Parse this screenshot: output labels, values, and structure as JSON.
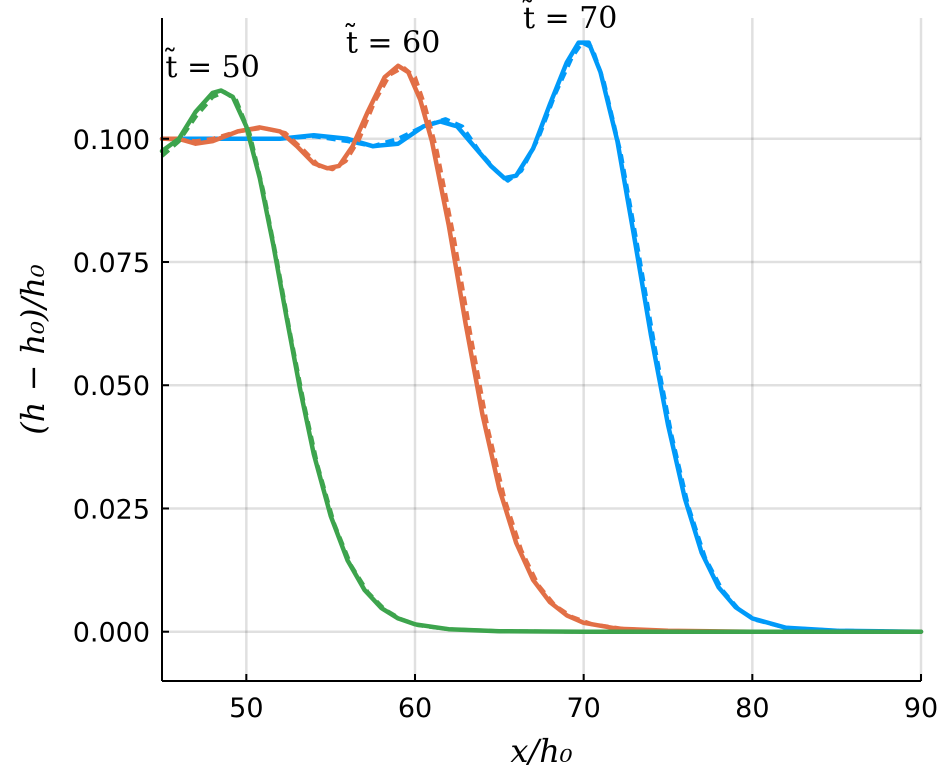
{
  "chart_data": {
    "type": "line",
    "xlabel": "x/h₀",
    "ylabel": "(h − h₀)/h₀",
    "xlim": [
      45,
      90
    ],
    "ylim": [
      -0.01,
      0.1245
    ],
    "grid": true,
    "legend": "none",
    "xticks": [
      {
        "value": 50,
        "label": "50"
      },
      {
        "value": 60,
        "label": "60"
      },
      {
        "value": 70,
        "label": "70"
      },
      {
        "value": 80,
        "label": "80"
      },
      {
        "value": 90,
        "label": "90"
      }
    ],
    "yticks": [
      {
        "value": 0.0,
        "label": "0.000"
      },
      {
        "value": 0.025,
        "label": "0.025"
      },
      {
        "value": 0.05,
        "label": "0.050"
      },
      {
        "value": 0.075,
        "label": "0.075"
      },
      {
        "value": 0.1,
        "label": "0.100"
      }
    ],
    "annotations": [
      {
        "text": "t̃ = 50",
        "x": 48.0,
        "y": 0.1125
      },
      {
        "text": "t̃ = 60",
        "x": 58.7,
        "y": 0.1175
      },
      {
        "text": "t̃ = 70",
        "x": 69.2,
        "y": 0.1225
      }
    ],
    "series": [
      {
        "color": "#009af9",
        "style": "solid",
        "points": [
          [
            45,
            0.1
          ],
          [
            50,
            0.1
          ],
          [
            52,
            0.1
          ],
          [
            54,
            0.1007
          ],
          [
            56,
            0.1
          ],
          [
            57.5,
            0.0985
          ],
          [
            59,
            0.099
          ],
          [
            60.5,
            0.1025
          ],
          [
            61.5,
            0.1035
          ],
          [
            62.5,
            0.1025
          ],
          [
            63.5,
            0.0985
          ],
          [
            64.5,
            0.0945
          ],
          [
            65.3,
            0.092
          ],
          [
            66,
            0.0925
          ],
          [
            67,
            0.098
          ],
          [
            68,
            0.107
          ],
          [
            69,
            0.1155
          ],
          [
            69.7,
            0.1195
          ],
          [
            70.3,
            0.1195
          ],
          [
            71,
            0.1135
          ],
          [
            72,
            0.0995
          ],
          [
            73,
            0.08
          ],
          [
            74,
            0.06
          ],
          [
            75,
            0.042
          ],
          [
            76,
            0.027
          ],
          [
            77,
            0.016
          ],
          [
            78,
            0.009
          ],
          [
            79,
            0.005
          ],
          [
            80,
            0.0027
          ],
          [
            82,
            0.0008
          ],
          [
            85,
            0.0002
          ],
          [
            90,
            0.0
          ]
        ]
      },
      {
        "color": "#009af9",
        "style": "dashed",
        "points": [
          [
            45,
            0.1
          ],
          [
            50,
            0.1
          ],
          [
            52,
            0.1
          ],
          [
            54,
            0.1005
          ],
          [
            56,
            0.0995
          ],
          [
            57.5,
            0.0985
          ],
          [
            59,
            0.1
          ],
          [
            60.5,
            0.1025
          ],
          [
            61.8,
            0.104
          ],
          [
            62.8,
            0.1025
          ],
          [
            63.8,
            0.0975
          ],
          [
            64.8,
            0.0935
          ],
          [
            65.5,
            0.0915
          ],
          [
            66.3,
            0.0935
          ],
          [
            67.3,
            0.1
          ],
          [
            68.3,
            0.109
          ],
          [
            69.3,
            0.1165
          ],
          [
            69.9,
            0.1195
          ],
          [
            70.5,
            0.1185
          ],
          [
            71.2,
            0.1115
          ],
          [
            72.2,
            0.097
          ],
          [
            73.2,
            0.078
          ],
          [
            74.2,
            0.058
          ],
          [
            75.2,
            0.04
          ],
          [
            76.2,
            0.0255
          ],
          [
            77.2,
            0.015
          ],
          [
            78.2,
            0.0085
          ],
          [
            79.2,
            0.0045
          ],
          [
            80.2,
            0.0024
          ],
          [
            82,
            0.0008
          ],
          [
            85,
            0.0002
          ],
          [
            90,
            0.0
          ]
        ]
      },
      {
        "color": "#e26f46",
        "style": "solid",
        "points": [
          [
            45,
            0.1
          ],
          [
            46,
            0.1
          ],
          [
            47,
            0.099
          ],
          [
            48,
            0.0995
          ],
          [
            49.5,
            0.1015
          ],
          [
            50.8,
            0.1023
          ],
          [
            52,
            0.1015
          ],
          [
            53,
            0.0985
          ],
          [
            54,
            0.095
          ],
          [
            54.8,
            0.094
          ],
          [
            55.5,
            0.0945
          ],
          [
            56.3,
            0.0985
          ],
          [
            57.2,
            0.1055
          ],
          [
            58.2,
            0.1125
          ],
          [
            59,
            0.1148
          ],
          [
            59.6,
            0.1135
          ],
          [
            60.3,
            0.108
          ],
          [
            61,
            0.0995
          ],
          [
            62,
            0.0825
          ],
          [
            63,
            0.0625
          ],
          [
            64,
            0.044
          ],
          [
            65,
            0.029
          ],
          [
            66,
            0.018
          ],
          [
            67,
            0.0105
          ],
          [
            68,
            0.006
          ],
          [
            69,
            0.0033
          ],
          [
            70,
            0.0018
          ],
          [
            72,
            0.0006
          ],
          [
            75,
            0.0002
          ],
          [
            80,
            0.0
          ],
          [
            90,
            0.0
          ]
        ]
      },
      {
        "color": "#e26f46",
        "style": "dashed",
        "points": [
          [
            45,
            0.1
          ],
          [
            46,
            0.0998
          ],
          [
            47,
            0.0995
          ],
          [
            48,
            0.1
          ],
          [
            49.5,
            0.1015
          ],
          [
            51,
            0.1022
          ],
          [
            52.3,
            0.1012
          ],
          [
            53.3,
            0.098
          ],
          [
            54.3,
            0.0945
          ],
          [
            55.1,
            0.0938
          ],
          [
            55.9,
            0.0955
          ],
          [
            56.7,
            0.1
          ],
          [
            57.6,
            0.1075
          ],
          [
            58.5,
            0.113
          ],
          [
            59.3,
            0.1145
          ],
          [
            60,
            0.1125
          ],
          [
            60.6,
            0.1065
          ],
          [
            61.3,
            0.0975
          ],
          [
            62.3,
            0.08
          ],
          [
            63.3,
            0.06
          ],
          [
            64.3,
            0.0415
          ],
          [
            65.3,
            0.027
          ],
          [
            66.3,
            0.0165
          ],
          [
            67.3,
            0.0095
          ],
          [
            68.3,
            0.0053
          ],
          [
            69.3,
            0.003
          ],
          [
            70.5,
            0.0015
          ],
          [
            72.5,
            0.0005
          ],
          [
            75,
            0.0001
          ],
          [
            80,
            0.0
          ],
          [
            90,
            0.0
          ]
        ]
      },
      {
        "color": "#3da44d",
        "style": "solid",
        "points": [
          [
            45,
            0.0975
          ],
          [
            46,
            0.1
          ],
          [
            47,
            0.1055
          ],
          [
            48,
            0.1093
          ],
          [
            48.5,
            0.1098
          ],
          [
            49.2,
            0.1085
          ],
          [
            50,
            0.1025
          ],
          [
            50.8,
            0.092
          ],
          [
            51.6,
            0.0785
          ],
          [
            52.4,
            0.0635
          ],
          [
            53.2,
            0.049
          ],
          [
            54,
            0.036
          ],
          [
            55,
            0.0235
          ],
          [
            56,
            0.0145
          ],
          [
            57,
            0.0085
          ],
          [
            58,
            0.0048
          ],
          [
            59,
            0.0027
          ],
          [
            60,
            0.0015
          ],
          [
            62,
            0.0005
          ],
          [
            65,
            0.0001
          ],
          [
            70,
            0.0
          ],
          [
            90,
            0.0
          ]
        ]
      },
      {
        "color": "#3da44d",
        "style": "dashed",
        "points": [
          [
            45,
            0.0965
          ],
          [
            46,
            0.0995
          ],
          [
            47,
            0.1045
          ],
          [
            48,
            0.1085
          ],
          [
            48.7,
            0.1095
          ],
          [
            49.4,
            0.1078
          ],
          [
            50.2,
            0.101
          ],
          [
            51,
            0.0895
          ],
          [
            51.8,
            0.0755
          ],
          [
            52.6,
            0.0605
          ],
          [
            53.4,
            0.0465
          ],
          [
            54.2,
            0.034
          ],
          [
            55.2,
            0.022
          ],
          [
            56.2,
            0.0135
          ],
          [
            57.2,
            0.008
          ],
          [
            58.2,
            0.0045
          ],
          [
            59.2,
            0.0025
          ],
          [
            60.2,
            0.0013
          ],
          [
            62,
            0.0005
          ],
          [
            65,
            0.0001
          ],
          [
            70,
            0.0
          ],
          [
            90,
            0.0
          ]
        ]
      }
    ]
  }
}
